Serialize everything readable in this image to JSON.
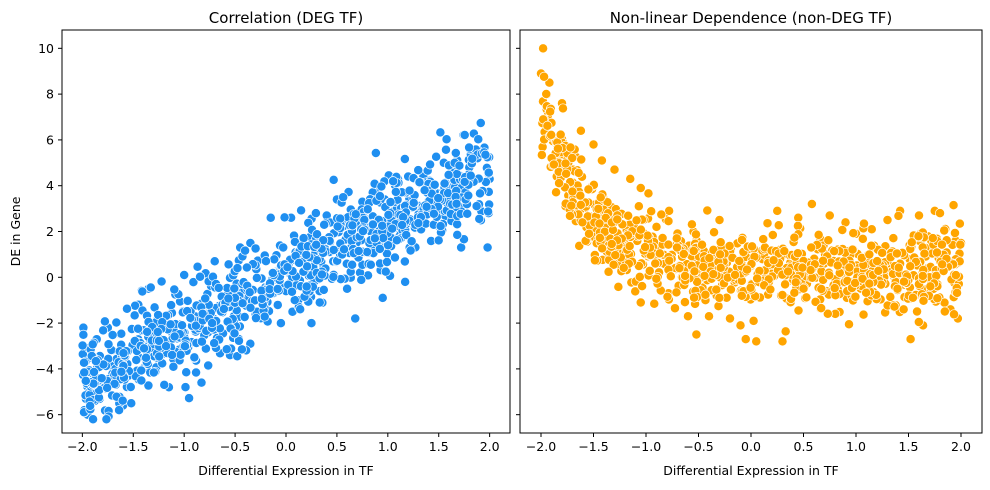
{
  "figure": {
    "background": "#ffffff",
    "shared_y": true
  },
  "chart_data": [
    {
      "type": "scatter",
      "title": "Correlation (DEG TF)",
      "xlabel": "Differential Expression in TF",
      "ylabel": "DE in Gene",
      "xlim": [
        -2.2,
        2.2
      ],
      "ylim": [
        -6.8,
        10.8
      ],
      "xticks": [
        -2.0,
        -1.5,
        -1.0,
        -0.5,
        0.0,
        0.5,
        1.0,
        1.5,
        2.0
      ],
      "xtick_labels": [
        "−2.0",
        "−1.5",
        "−1.0",
        "−0.5",
        "0.0",
        "0.5",
        "1.0",
        "1.5",
        "2.0"
      ],
      "yticks": [
        -6,
        -4,
        -2,
        0,
        2,
        4,
        6,
        8,
        10
      ],
      "ytick_labels": [
        "−6",
        "−4",
        "−2",
        "0",
        "2",
        "4",
        "6",
        "8",
        "10"
      ],
      "grid": false,
      "marker_color": "#1f8ff0",
      "marker_edge": "#ffffff",
      "n_points": 1000,
      "relationship": {
        "form": "linear",
        "slope": 2.3,
        "intercept": 0.0,
        "noise_sd": 1.0,
        "x_range": [
          -2.0,
          2.0
        ]
      },
      "points": [
        [
          -1.99,
          -2.2
        ],
        [
          -1.98,
          -5.8
        ],
        [
          -1.95,
          -6.0
        ],
        [
          -1.9,
          -5.0
        ],
        [
          -1.75,
          -2.2
        ],
        [
          -1.6,
          -5.6
        ],
        [
          -1.52,
          -5.5
        ],
        [
          -1.45,
          -1.2
        ],
        [
          -1.35,
          -0.5
        ],
        [
          -1.15,
          -4.8
        ],
        [
          -1.0,
          0.1
        ],
        [
          -0.83,
          -4.6
        ],
        [
          -0.7,
          0.7
        ],
        [
          -0.55,
          -3.4
        ],
        [
          -0.45,
          1.3
        ],
        [
          -0.35,
          1.5
        ],
        [
          -0.15,
          2.6
        ],
        [
          -0.05,
          -2.0
        ],
        [
          0.05,
          2.6
        ],
        [
          0.12,
          -1.0
        ],
        [
          0.25,
          -2.0
        ],
        [
          0.4,
          2.7
        ],
        [
          0.5,
          3.4
        ],
        [
          0.6,
          -0.5
        ],
        [
          0.68,
          -1.8
        ],
        [
          0.75,
          3.3
        ],
        [
          0.9,
          3.7
        ],
        [
          0.95,
          -0.9
        ],
        [
          1.1,
          4.3
        ],
        [
          1.17,
          -0.2
        ],
        [
          1.2,
          4.4
        ],
        [
          1.35,
          4.4
        ],
        [
          1.45,
          4.0
        ],
        [
          1.55,
          5.0
        ],
        [
          1.65,
          5.0
        ],
        [
          1.72,
          1.3
        ],
        [
          1.8,
          4.8
        ],
        [
          1.88,
          5.2
        ],
        [
          1.95,
          5.4
        ],
        [
          1.98,
          1.3
        ],
        [
          2.0,
          4.3
        ],
        [
          1.99,
          2.8
        ]
      ]
    },
    {
      "type": "scatter",
      "title": "Non-linear Dependence (non-DEG TF)",
      "xlabel": "Differential Expression in TF",
      "ylabel": "",
      "xlim": [
        -2.2,
        2.2
      ],
      "ylim": [
        -6.8,
        10.8
      ],
      "xticks": [
        -2.0,
        -1.5,
        -1.0,
        -0.5,
        0.0,
        0.5,
        1.0,
        1.5,
        2.0
      ],
      "xtick_labels": [
        "−2.0",
        "−1.5",
        "−1.0",
        "−0.5",
        "0.0",
        "0.5",
        "1.0",
        "1.5",
        "2.0"
      ],
      "yticks": [
        -6,
        -4,
        -2,
        0,
        2,
        4,
        6,
        8,
        10
      ],
      "ytick_labels": [],
      "grid": false,
      "marker_color": "#ffa500",
      "marker_edge": "#ffffff",
      "n_points": 1000,
      "relationship": {
        "form": "exponential_decay",
        "amplitude": 7.2,
        "rate": 2.2,
        "offset": 0.3,
        "x0": -2.0,
        "noise_sd": 0.85,
        "x_range": [
          -2.0,
          2.0
        ]
      },
      "points": [
        [
          -1.98,
          10.0
        ],
        [
          -2.0,
          8.9
        ],
        [
          -1.92,
          8.5
        ],
        [
          -1.85,
          4.4
        ],
        [
          -1.8,
          7.6
        ],
        [
          -1.62,
          6.4
        ],
        [
          -1.5,
          5.8
        ],
        [
          -1.42,
          5.1
        ],
        [
          -1.3,
          4.7
        ],
        [
          -1.15,
          4.3
        ],
        [
          -1.05,
          3.9
        ],
        [
          -0.95,
          1.0
        ],
        [
          -0.9,
          2.2
        ],
        [
          -0.78,
          2.9
        ],
        [
          -1.05,
          -1.1
        ],
        [
          -0.6,
          -1.7
        ],
        [
          -0.52,
          -2.5
        ],
        [
          -0.4,
          -1.7
        ],
        [
          -0.3,
          2.5
        ],
        [
          -0.2,
          -1.8
        ],
        [
          -0.1,
          -2.1
        ],
        [
          -0.05,
          -2.7
        ],
        [
          0.05,
          -2.8
        ],
        [
          0.25,
          2.9
        ],
        [
          0.3,
          -2.8
        ],
        [
          0.45,
          2.6
        ],
        [
          0.58,
          3.2
        ],
        [
          0.75,
          2.7
        ],
        [
          0.9,
          2.4
        ],
        [
          1.0,
          1.9
        ],
        [
          1.15,
          2.1
        ],
        [
          1.3,
          2.5
        ],
        [
          1.42,
          2.9
        ],
        [
          1.52,
          -2.7
        ],
        [
          1.6,
          2.7
        ],
        [
          1.75,
          2.9
        ],
        [
          1.8,
          2.8
        ],
        [
          1.9,
          -1.4
        ],
        [
          1.95,
          1.6
        ],
        [
          1.97,
          -1.8
        ],
        [
          2.0,
          1.5
        ],
        [
          1.85,
          2.1
        ]
      ]
    }
  ]
}
